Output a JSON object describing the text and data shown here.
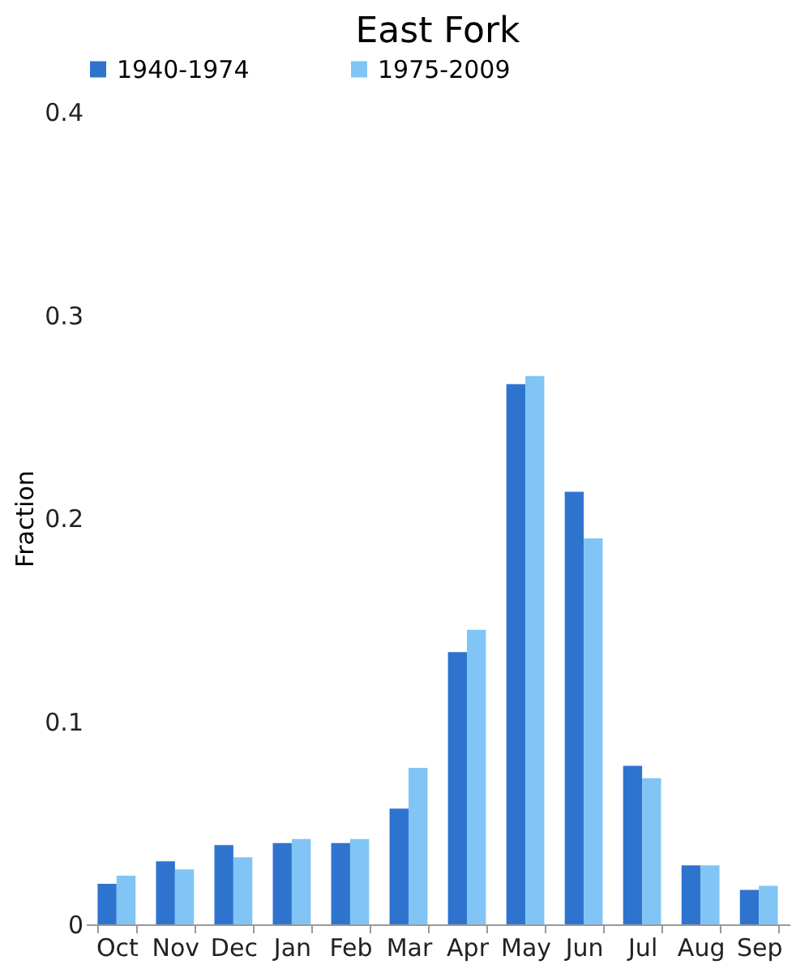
{
  "chart_data": {
    "type": "bar",
    "title": "East Fork",
    "ylabel": "Fraction",
    "categories": [
      "Oct",
      "Nov",
      "Dec",
      "Jan",
      "Feb",
      "Mar",
      "Apr",
      "May",
      "Jun",
      "Jul",
      "Aug",
      "Sep"
    ],
    "series": [
      {
        "name": "1940-1974",
        "color": "#2e74cf",
        "values": [
          0.02,
          0.031,
          0.039,
          0.04,
          0.04,
          0.057,
          0.134,
          0.266,
          0.213,
          0.078,
          0.029,
          0.017
        ]
      },
      {
        "name": "1975-2009",
        "color": "#80c5f5",
        "values": [
          0.024,
          0.027,
          0.033,
          0.042,
          0.042,
          0.077,
          0.145,
          0.27,
          0.19,
          0.072,
          0.029,
          0.019
        ]
      }
    ],
    "ylim": [
      0,
      0.4
    ],
    "yticks": [
      0,
      0.1,
      0.2,
      0.3,
      0.4
    ],
    "grid": false,
    "legend": "top"
  }
}
